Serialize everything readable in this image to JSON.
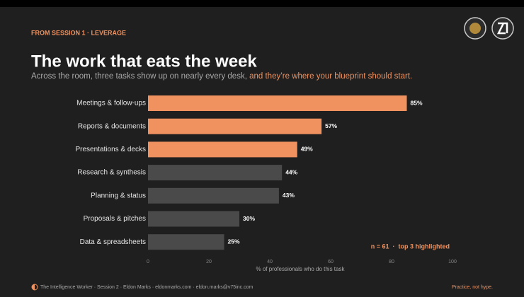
{
  "eyebrow": "FROM SESSION 1 · LEVERAGE",
  "chart_data": {
    "type": "bar",
    "orientation": "horizontal",
    "title": "The work that eats the week",
    "subtitle": "Across the room, three tasks show up on nearly every desk, ",
    "subtitle_highlight": "and they’re where your blueprint should start.",
    "accent_color": "#f0925f",
    "categories": [
      "Meetings & follow-ups",
      "Reports & documents",
      "Presentations & decks",
      "Research & synthesis",
      "Planning & status",
      "Proposals & pitches",
      "Data & spreadsheets"
    ],
    "values": [
      85,
      57,
      49,
      44,
      43,
      30,
      25
    ],
    "value_labels": [
      "85%",
      "57%",
      "49%",
      "44%",
      "43%",
      "30%",
      "25%"
    ],
    "colors": [
      "#f0925f",
      "#f0925f",
      "#f0925f",
      "#4a4a4a",
      "#4a4a4a",
      "#4a4a4a",
      "#4a4a4a"
    ],
    "xlim": [
      0,
      100
    ],
    "xticks": [
      0,
      20,
      40,
      60,
      80,
      100
    ],
    "xlabel": "% of professionals who do this task",
    "annotation": "n = 61  ·  top 3 highlighted"
  },
  "footer": {
    "left": "The Intelligence Worker · Session 2 · Eldon Marks · eldonmarks.com · eldon.marks@v75inc.com",
    "right": "Practice, not hype."
  }
}
